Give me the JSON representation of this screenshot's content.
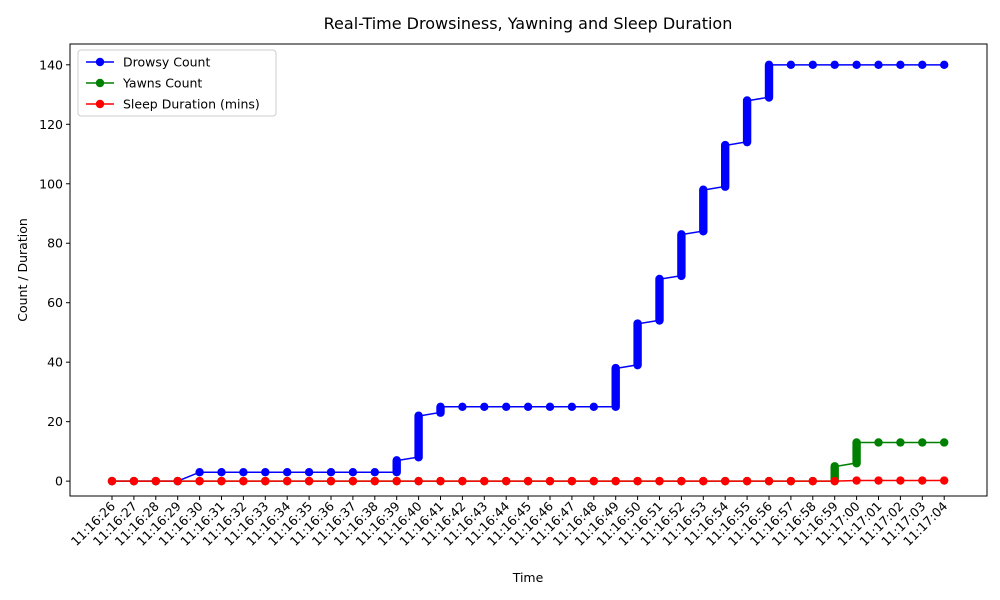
{
  "chart_data": {
    "type": "line",
    "title": "Real-Time Drowsiness, Yawning and Sleep Duration",
    "xlabel": "Time",
    "ylabel": "Count / Duration",
    "ylim": [
      -5,
      147
    ],
    "yticks": [
      0,
      20,
      40,
      60,
      80,
      100,
      120,
      140
    ],
    "categories": [
      "11:16:26",
      "11:16:27",
      "11:16:28",
      "11:16:29",
      "11:16:30",
      "11:16:31",
      "11:16:32",
      "11:16:33",
      "11:16:34",
      "11:16:35",
      "11:16:36",
      "11:16:37",
      "11:16:38",
      "11:16:39",
      "11:16:40",
      "11:16:41",
      "11:16:42",
      "11:16:43",
      "11:16:44",
      "11:16:45",
      "11:16:46",
      "11:16:47",
      "11:16:48",
      "11:16:49",
      "11:16:50",
      "11:16:51",
      "11:16:52",
      "11:16:53",
      "11:16:54",
      "11:16:55",
      "11:16:56",
      "11:16:57",
      "11:16:58",
      "11:16:59",
      "11:17:00",
      "11:17:01",
      "11:17:02",
      "11:17:03",
      "11:17:04"
    ],
    "legend_position": "upper-left",
    "grid": false,
    "series": [
      {
        "name": "Drowsy Count",
        "color": "#0000ff",
        "steps": [
          [
            0
          ],
          [
            0
          ],
          [
            0
          ],
          [
            0
          ],
          [
            3
          ],
          [
            3
          ],
          [
            3
          ],
          [
            3
          ],
          [
            3
          ],
          [
            3
          ],
          [
            3
          ],
          [
            3
          ],
          [
            3
          ],
          [
            3,
            7
          ],
          [
            8,
            22
          ],
          [
            23,
            25
          ],
          [
            25
          ],
          [
            25
          ],
          [
            25
          ],
          [
            25
          ],
          [
            25
          ],
          [
            25
          ],
          [
            25
          ],
          [
            25,
            38
          ],
          [
            39,
            53
          ],
          [
            54,
            68
          ],
          [
            69,
            83
          ],
          [
            84,
            98
          ],
          [
            99,
            113
          ],
          [
            114,
            128
          ],
          [
            129,
            140
          ],
          [
            140
          ],
          [
            140
          ],
          [
            140
          ],
          [
            140
          ],
          [
            140
          ],
          [
            140
          ],
          [
            140
          ],
          [
            140
          ]
        ]
      },
      {
        "name": "Yawns Count",
        "color": "#008000",
        "steps": [
          [
            0
          ],
          [
            0
          ],
          [
            0
          ],
          [
            0
          ],
          [
            0
          ],
          [
            0
          ],
          [
            0
          ],
          [
            0
          ],
          [
            0
          ],
          [
            0
          ],
          [
            0
          ],
          [
            0
          ],
          [
            0
          ],
          [
            0
          ],
          [
            0
          ],
          [
            0
          ],
          [
            0
          ],
          [
            0
          ],
          [
            0
          ],
          [
            0
          ],
          [
            0
          ],
          [
            0
          ],
          [
            0
          ],
          [
            0
          ],
          [
            0
          ],
          [
            0
          ],
          [
            0
          ],
          [
            0
          ],
          [
            0
          ],
          [
            0
          ],
          [
            0
          ],
          [
            0
          ],
          [
            0
          ],
          [
            0,
            5
          ],
          [
            6,
            13
          ],
          [
            13
          ],
          [
            13
          ],
          [
            13
          ],
          [
            13
          ]
        ]
      },
      {
        "name": "Sleep Duration (mins)",
        "color": "#ff0000",
        "steps": [
          [
            0
          ],
          [
            0
          ],
          [
            0
          ],
          [
            0
          ],
          [
            0
          ],
          [
            0
          ],
          [
            0
          ],
          [
            0
          ],
          [
            0
          ],
          [
            0
          ],
          [
            0
          ],
          [
            0
          ],
          [
            0
          ],
          [
            0
          ],
          [
            0
          ],
          [
            0
          ],
          [
            0
          ],
          [
            0
          ],
          [
            0
          ],
          [
            0
          ],
          [
            0
          ],
          [
            0
          ],
          [
            0
          ],
          [
            0
          ],
          [
            0
          ],
          [
            0
          ],
          [
            0
          ],
          [
            0
          ],
          [
            0
          ],
          [
            0
          ],
          [
            0
          ],
          [
            0
          ],
          [
            0
          ],
          [
            0
          ],
          [
            0.2
          ],
          [
            0.2
          ],
          [
            0.2
          ],
          [
            0.2
          ],
          [
            0.2
          ]
        ]
      }
    ]
  }
}
